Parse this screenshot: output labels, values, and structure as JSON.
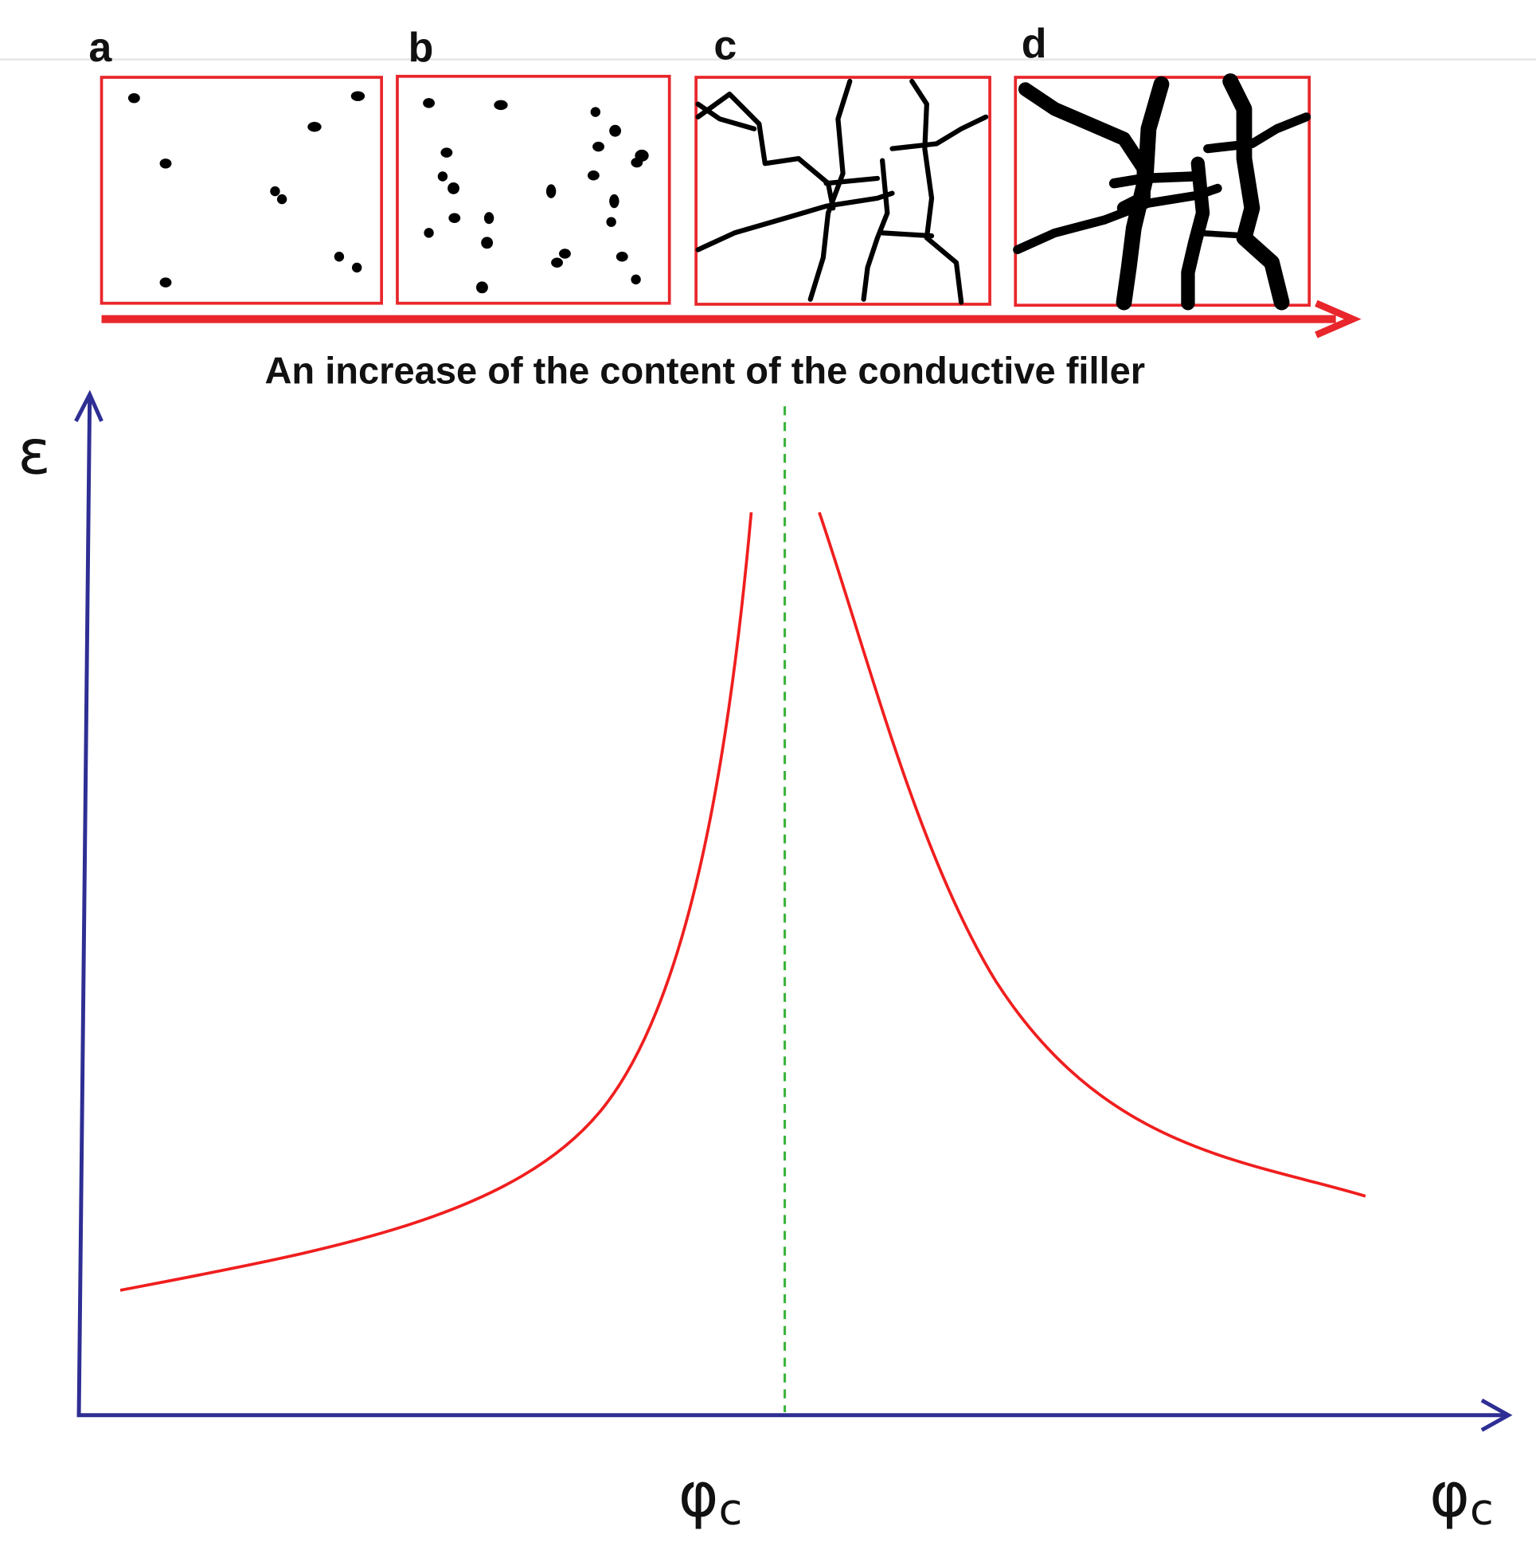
{
  "panels": [
    {
      "label": "a"
    },
    {
      "label": "b"
    },
    {
      "label": "c"
    },
    {
      "label": "d"
    }
  ],
  "caption": "An increase of the content of the conductive filler",
  "axes": {
    "y_label": "ε",
    "x_label": {
      "symbol": "φ",
      "subscript": "c"
    }
  },
  "threshold_label": {
    "symbol": "φ",
    "subscript": "c"
  }
}
